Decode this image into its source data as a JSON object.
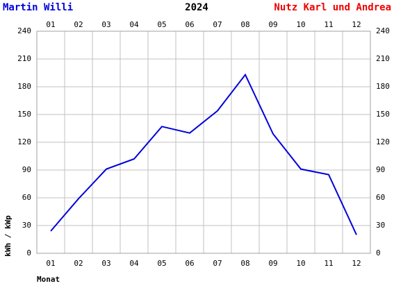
{
  "chart_data": {
    "type": "line",
    "left_title": "Martin Willi",
    "title": "2024",
    "right_title": "Nutz Karl und Andrea",
    "y_label": "kWh / kWp",
    "x_label": "Monat",
    "categories": [
      "01",
      "02",
      "03",
      "04",
      "05",
      "06",
      "07",
      "08",
      "09",
      "10",
      "11",
      "12"
    ],
    "series": [
      {
        "name": "2024",
        "color": "#0000dd",
        "values": [
          24,
          59,
          91,
          102,
          137,
          130,
          154,
          193,
          129,
          91,
          85,
          20
        ]
      }
    ],
    "ylim": [
      0,
      240
    ],
    "yticks": [
      0,
      30,
      60,
      90,
      120,
      150,
      180,
      210,
      240
    ],
    "grid": true
  }
}
